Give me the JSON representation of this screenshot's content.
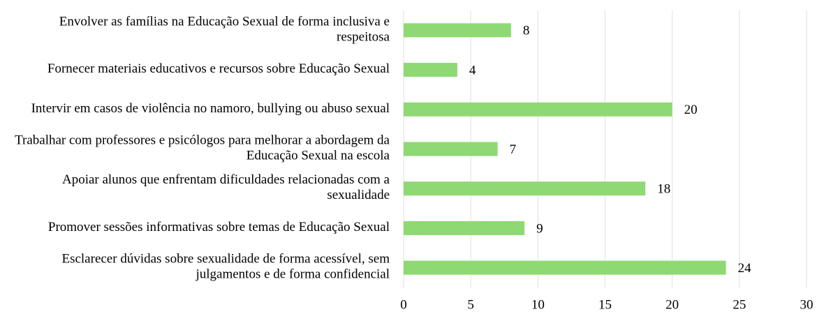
{
  "chart_data": {
    "type": "barh",
    "categories": [
      "Envolver as famílias na Educação Sexual de forma inclusiva e respeitosa",
      "Fornecer materiais educativos e recursos sobre Educação Sexual",
      "Intervir em casos de violência no namoro, bullying ou abuso sexual",
      "Trabalhar com professores e psicólogos para melhorar a abordagem da Educação Sexual na escola",
      "Apoiar alunos que enfrentam dificuldades relacionadas com a sexualidade",
      "Promover sessões informativas sobre temas de Educação Sexual",
      "Esclarecer dúvidas sobre sexualidade de forma acessível, sem julgamentos e de forma confidencial"
    ],
    "values": [
      8,
      4,
      20,
      7,
      18,
      9,
      24
    ],
    "color": "#8ed973",
    "xlim": [
      0,
      30
    ],
    "xticks": [
      0,
      5,
      10,
      15,
      20,
      25,
      30
    ],
    "grid": true
  }
}
